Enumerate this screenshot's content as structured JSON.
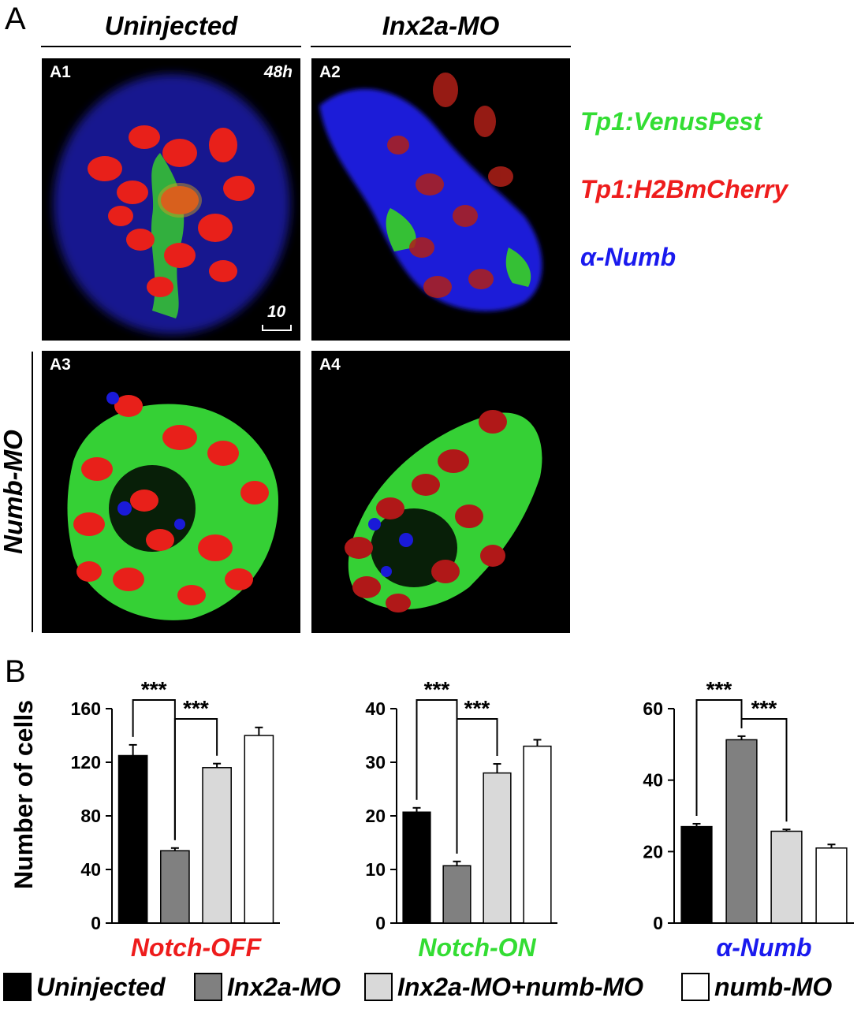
{
  "panel_a": {
    "letter": "A",
    "col_heads": [
      "Uninjected",
      "Inx2a-MO"
    ],
    "row_head": "Numb-MO",
    "tiles": [
      {
        "label": "A1",
        "time": "48h",
        "scale": "10"
      },
      {
        "label": "A2"
      },
      {
        "label": "A3"
      },
      {
        "label": "A4"
      }
    ],
    "channels": [
      {
        "text": "Tp1:VenusPest",
        "color": "#33dd33"
      },
      {
        "text": "Tp1:H2BmCherry",
        "color": "#ee1c1c"
      },
      {
        "text": "α-Numb",
        "color": "#1a1aee"
      }
    ]
  },
  "panel_b": {
    "letter": "B",
    "ylabel": "Number of cells"
  },
  "legend": [
    {
      "name": "Uninjected",
      "color": "#000000"
    },
    {
      "name": "Inx2a-MO",
      "color": "#808080"
    },
    {
      "name": "Inx2a-MO+numb-MO",
      "color": "#d9d9d9"
    },
    {
      "name": "numb-MO",
      "color": "#ffffff"
    }
  ],
  "colors": {
    "notch_off": "#ee1c1c",
    "notch_on": "#33dd33",
    "numb": "#1a1aee"
  },
  "chart_data": [
    {
      "type": "bar",
      "xlabel": "Notch-OFF",
      "xlabel_color": "#ee1c1c",
      "ylabel": "Number of cells",
      "ylim": [
        0,
        160
      ],
      "yticks": [
        0,
        40,
        80,
        120,
        160
      ],
      "ytick_labels": [
        "0",
        "40",
        "80",
        "120",
        "160"
      ],
      "categories": [
        "Uninjected",
        "Inx2a-MO",
        "Inx2a-MO+numb-MO",
        "numb-MO"
      ],
      "values": [
        125,
        54,
        116,
        140
      ],
      "errors": [
        8,
        2,
        3,
        6
      ],
      "significance": [
        {
          "from": 0,
          "to": 1,
          "label": "***"
        },
        {
          "from": 1,
          "to": 2,
          "label": "***"
        }
      ]
    },
    {
      "type": "bar",
      "xlabel": "Notch-ON",
      "xlabel_color": "#33dd33",
      "ylim": [
        0,
        40
      ],
      "yticks": [
        0,
        10,
        20,
        30,
        40
      ],
      "ytick_labels": [
        "0",
        "10",
        "20",
        "30",
        "40"
      ],
      "categories": [
        "Uninjected",
        "Inx2a-MO",
        "Inx2a-MO+numb-MO",
        "numb-MO"
      ],
      "values": [
        20.7,
        10.7,
        28,
        33
      ],
      "errors": [
        0.8,
        0.8,
        1.7,
        1.2
      ],
      "significance": [
        {
          "from": 0,
          "to": 1,
          "label": "***"
        },
        {
          "from": 1,
          "to": 2,
          "label": "***"
        }
      ]
    },
    {
      "type": "bar",
      "xlabel": "α-Numb",
      "xlabel_color": "#1a1aee",
      "ylim": [
        0,
        60
      ],
      "yticks": [
        0,
        20,
        40,
        60
      ],
      "ytick_labels": [
        "0",
        "20",
        "40",
        "60"
      ],
      "categories": [
        "Uninjected",
        "Inx2a-MO",
        "Inx2a-MO+numb-MO",
        "numb-MO"
      ],
      "values": [
        27,
        51.3,
        25.7,
        21
      ],
      "errors": [
        0.8,
        1.0,
        0.5,
        1.0
      ],
      "significance": [
        {
          "from": 0,
          "to": 1,
          "label": "***"
        },
        {
          "from": 1,
          "to": 2,
          "label": "***"
        }
      ]
    }
  ]
}
